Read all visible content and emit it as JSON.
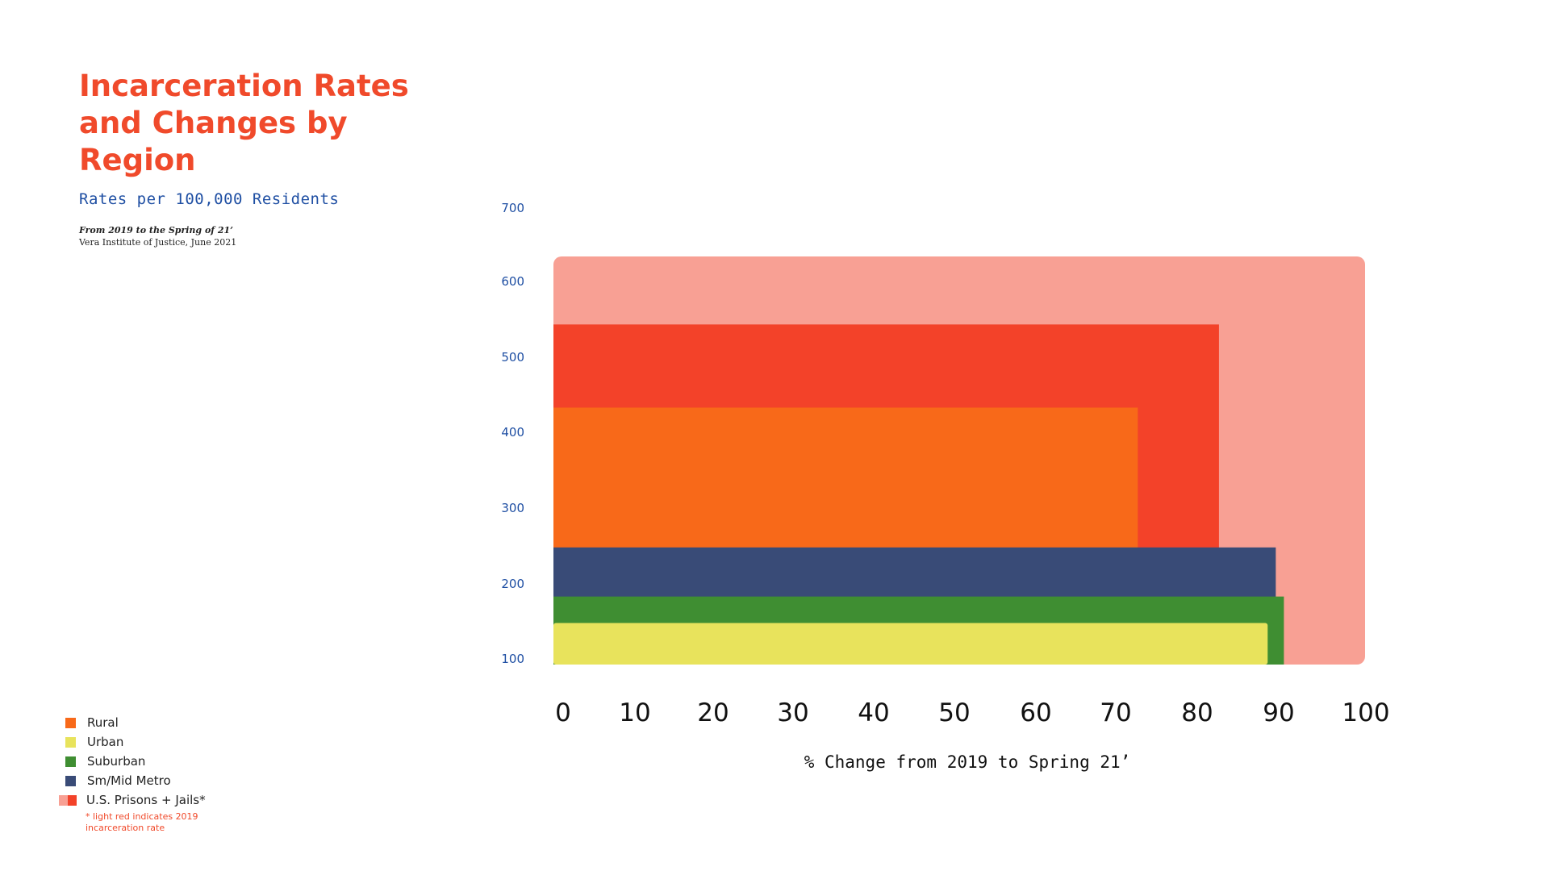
{
  "header": {
    "title": "Incarceration Rates and Changes by Region",
    "subtitle": "Rates per 100,000 Residents",
    "period": "From 2019 to the Spring of 21’",
    "source": "Vera Institute of Justice, June 2021"
  },
  "colors": {
    "us_2019": "#f8a094",
    "us_2021": "#f34229",
    "rural": "#f86919",
    "urban": "#e8e35c",
    "suburban": "#3f8e32",
    "sm_mid_metro": "#394b77",
    "accent": "#f04a2b",
    "axis_text": "#1f4fa3"
  },
  "legend": {
    "items": [
      {
        "label": "Rural",
        "color": "#f86919"
      },
      {
        "label": "Urban",
        "color": "#e8e35c"
      },
      {
        "label": "Suburban",
        "color": "#3f8e32"
      },
      {
        "label": "Sm/Mid Metro",
        "color": "#394b77"
      }
    ],
    "us_label": "U.S. Prisons + Jails*",
    "note": "* light red indicates 2019 incarceration rate"
  },
  "chart_data": {
    "type": "bar",
    "xlabel": "% Change from 2019 to Spring 21’",
    "ylabel": "",
    "x_ticks": [
      0,
      10,
      20,
      30,
      40,
      50,
      60,
      70,
      80,
      90,
      100
    ],
    "y_ticks": [
      700,
      600,
      500,
      400,
      300,
      200,
      100
    ],
    "xlim": [
      0,
      100
    ],
    "ylim": [
      100,
      700
    ],
    "series": [
      {
        "name": "U.S. Prisons + Jails (2019)",
        "rate": 630,
        "pct_change": 100,
        "color": "#f8a094"
      },
      {
        "name": "U.S. Prisons + Jails",
        "rate": 540,
        "pct_change": 82,
        "color": "#f34229"
      },
      {
        "name": "Rural",
        "rate": 430,
        "pct_change": 72,
        "color": "#f86919"
      },
      {
        "name": "Sm/Mid Metro",
        "rate": 245,
        "pct_change": 89,
        "color": "#394b77"
      },
      {
        "name": "Suburban",
        "rate": 180,
        "pct_change": 90,
        "color": "#3f8e32"
      },
      {
        "name": "Urban",
        "rate": 145,
        "pct_change": 88,
        "color": "#e8e35c"
      }
    ]
  }
}
